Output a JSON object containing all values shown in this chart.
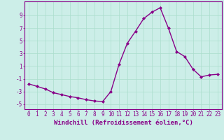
{
  "x": [
    0,
    1,
    2,
    3,
    4,
    5,
    6,
    7,
    8,
    9,
    10,
    11,
    12,
    13,
    14,
    15,
    16,
    17,
    18,
    19,
    20,
    21,
    22,
    23
  ],
  "y": [
    -1.8,
    -2.2,
    -2.6,
    -3.2,
    -3.5,
    -3.8,
    -4.0,
    -4.3,
    -4.5,
    -4.6,
    -3.0,
    1.3,
    4.6,
    6.5,
    8.5,
    9.5,
    10.2,
    7.0,
    3.3,
    2.5,
    0.5,
    -0.7,
    -0.4,
    -0.3
  ],
  "line_color": "#880088",
  "marker": "D",
  "marker_size": 2.0,
  "linewidth": 1.0,
  "bg_color": "#cceee8",
  "grid_color": "#aaddcc",
  "xlabel": "Windchill (Refroidissement éolien,°C)",
  "xlabel_color": "#880088",
  "xlabel_fontsize": 6.5,
  "yticks": [
    -5,
    -3,
    -1,
    1,
    3,
    5,
    7,
    9
  ],
  "xticks": [
    0,
    1,
    2,
    3,
    4,
    5,
    6,
    7,
    8,
    9,
    10,
    11,
    12,
    13,
    14,
    15,
    16,
    17,
    18,
    19,
    20,
    21,
    22,
    23
  ],
  "ylim": [
    -5.8,
    11.2
  ],
  "xlim": [
    -0.5,
    23.5
  ],
  "tick_color": "#880088",
  "tick_fontsize": 5.5,
  "spine_color": "#880088"
}
